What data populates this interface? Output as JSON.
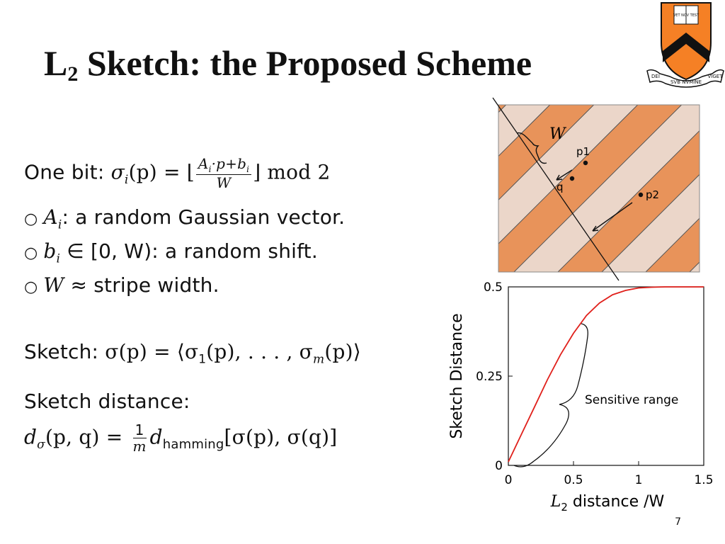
{
  "slide": {
    "title_main": "L",
    "title_sub": "2",
    "title_rest": " Sketch: the Proposed Scheme",
    "page_number": "7"
  },
  "content": {
    "one_bit_label": "One bit:",
    "one_bit_sigma": "σ",
    "one_bit_sub": "i",
    "one_bit_arg": "(p) = ⌊",
    "frac_num": "A",
    "frac_num_sub": "i",
    "frac_num_rest": "·p+b",
    "frac_num_sub2": "i",
    "frac_den": "W",
    "one_bit_tail": "⌋ mod 2",
    "bullets": [
      {
        "math": "A",
        "math_sub": "i",
        "text": ": a random Gaussian vector."
      },
      {
        "math": "b",
        "math_sub": "i",
        "text": " ∈ [0, W): a random shift."
      },
      {
        "math": "W",
        "math_sub": "",
        "text": " ≈ stripe width."
      }
    ],
    "sketch_label": "Sketch:",
    "sketch_formula": "σ(p) = ⟨σ",
    "sketch_s1": "1",
    "sketch_mid": "(p), . . . , σ",
    "sketch_sm": "m",
    "sketch_end": "(p)⟩",
    "sketch_distance_label": "Sketch distance:",
    "dist_d": "d",
    "dist_sigma": "σ",
    "dist_args": "(p, q) = ",
    "dist_frac_num": "1",
    "dist_frac_den": "m",
    "dist_d2": "d",
    "dist_hamming": "hamming",
    "dist_tail": "[σ(p), σ(q)]"
  },
  "stripes": {
    "label_w": "W",
    "label_p1": "p1",
    "label_q": "q",
    "label_p2": "p2",
    "color_dark": "#e8935a",
    "color_light": "#ebd6c9"
  },
  "logo": {
    "top_text": "VET NOV TEST",
    "left_text": "DEI",
    "center_text": "SVB NVMINE",
    "right_text": "VIGET",
    "shield_color": "#f58025"
  },
  "chart_data": {
    "type": "line",
    "xlabel_prefix": "L",
    "xlabel_sub": "2",
    "xlabel_rest": " distance /W",
    "ylabel": "Sketch Distance",
    "x_ticks": [
      "0",
      "0.5",
      "1",
      "1.5"
    ],
    "y_ticks": [
      "0",
      "0.25",
      "0.5"
    ],
    "xlim": [
      0,
      1.5
    ],
    "ylim": [
      0,
      0.5
    ],
    "annotation": "Sensitive range",
    "series": [
      {
        "color": "#e0201b",
        "x": [
          0,
          0.1,
          0.2,
          0.3,
          0.4,
          0.5,
          0.6,
          0.7,
          0.8,
          0.9,
          1.0,
          1.1,
          1.2,
          1.3,
          1.4,
          1.5
        ],
        "y": [
          0.01,
          0.087,
          0.163,
          0.24,
          0.31,
          0.37,
          0.42,
          0.455,
          0.478,
          0.49,
          0.497,
          0.499,
          0.5,
          0.5,
          0.5,
          0.5
        ]
      }
    ]
  }
}
